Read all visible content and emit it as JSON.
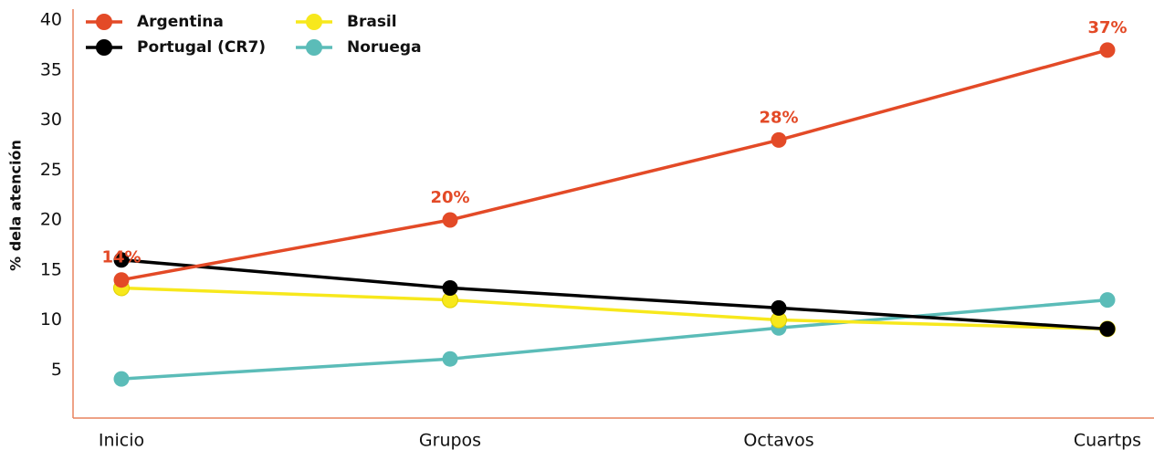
{
  "chart_data": {
    "type": "line",
    "y_label": "% dela atención",
    "categories": [
      "Inicio",
      "Grupos",
      "Octavos",
      "Cuartps"
    ],
    "ylim": [
      0,
      40
    ],
    "yticks": [
      5,
      10,
      15,
      20,
      25,
      30,
      35,
      40
    ],
    "series": [
      {
        "name": "Argentina",
        "color": "#e34a27",
        "values": [
          14,
          20,
          28,
          37
        ],
        "value_labels": [
          "14%",
          "20%",
          "28%",
          "37%"
        ]
      },
      {
        "name": "Portugal (CR7)",
        "color": "#000000",
        "values": [
          16,
          13.2,
          11.2,
          9.1
        ]
      },
      {
        "name": "Brasil",
        "color": "#f7e81c",
        "values": [
          13.2,
          12,
          10,
          9.1
        ]
      },
      {
        "name": "Noruega",
        "color": "#5bbcb8",
        "values": [
          4.1,
          6.1,
          9.2,
          12
        ]
      }
    ]
  }
}
